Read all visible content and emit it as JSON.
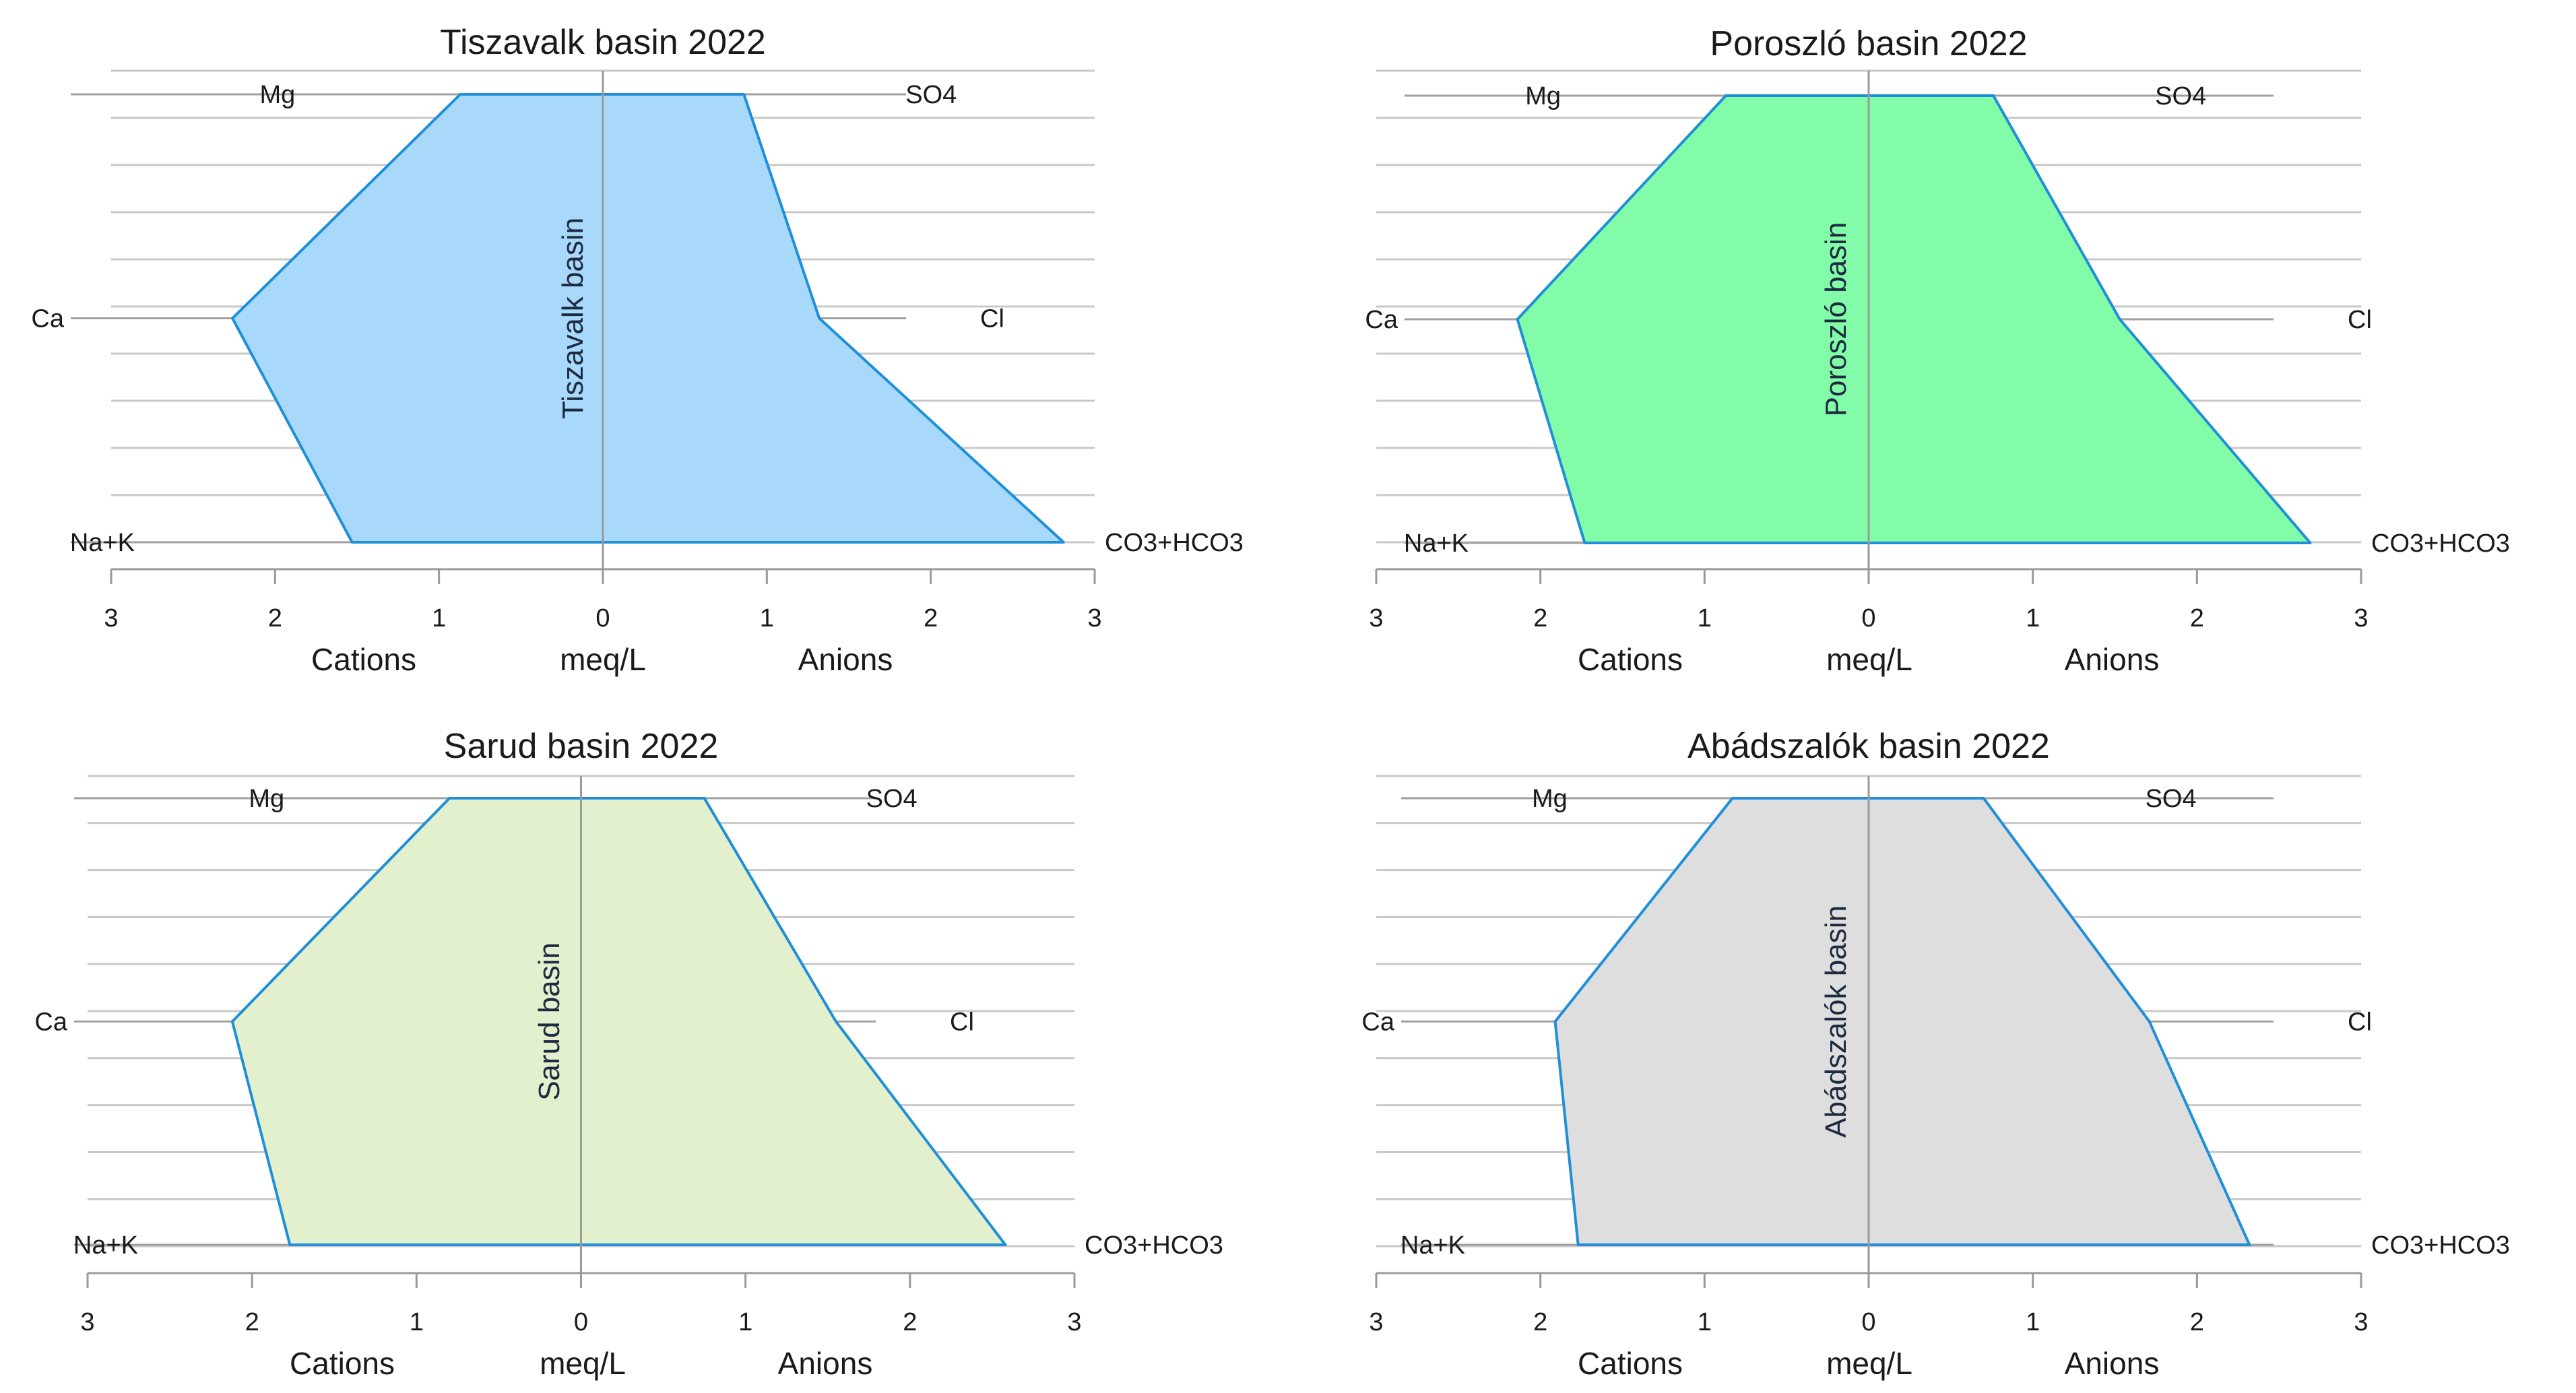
{
  "chart_data": [
    {
      "type": "stiff",
      "title": "Tiszavalk basin 2022",
      "center_label": "Tiszavalk basin",
      "fill": "#a8d8fa",
      "cations": [
        {
          "ion": "Mg",
          "value": 0.87
        },
        {
          "ion": "Ca",
          "value": 2.26
        },
        {
          "ion": "Na+K",
          "value": 1.53
        }
      ],
      "anions": [
        {
          "ion": "SO4",
          "value": 0.86
        },
        {
          "ion": "Cl",
          "value": 1.32
        },
        {
          "ion": "CO3+HCO3",
          "value": 2.81
        }
      ],
      "xlim": [
        -3,
        3
      ],
      "ticks": [
        "3",
        "2",
        "1",
        "0",
        "1",
        "2",
        "3"
      ],
      "xlabel_left": "Cations",
      "xlabel_center": "meq/L",
      "xlabel_right": "Anions"
    },
    {
      "type": "stiff",
      "title": "Poroszló basin 2022",
      "center_label": "Poroszló basin",
      "fill": "#82fca8",
      "cations": [
        {
          "ion": "Mg",
          "value": 0.87
        },
        {
          "ion": "Ca",
          "value": 2.14
        },
        {
          "ion": "Na+K",
          "value": 1.73
        }
      ],
      "anions": [
        {
          "ion": "SO4",
          "value": 0.76
        },
        {
          "ion": "Cl",
          "value": 1.53
        },
        {
          "ion": "CO3+HCO3",
          "value": 2.69
        }
      ],
      "xlim": [
        -3,
        3
      ],
      "ticks": [
        "3",
        "2",
        "1",
        "0",
        "1",
        "2",
        "3"
      ],
      "xlabel_left": "Cations",
      "xlabel_center": "meq/L",
      "xlabel_right": "Anions"
    },
    {
      "type": "stiff",
      "title": "Sarud basin 2022",
      "center_label": "Sarud basin",
      "fill": "#e3f0cd",
      "cations": [
        {
          "ion": "Mg",
          "value": 0.8
        },
        {
          "ion": "Ca",
          "value": 2.12
        },
        {
          "ion": "Na+K",
          "value": 1.77
        }
      ],
      "anions": [
        {
          "ion": "SO4",
          "value": 0.75
        },
        {
          "ion": "Cl",
          "value": 1.55
        },
        {
          "ion": "CO3+HCO3",
          "value": 2.58
        }
      ],
      "xlim": [
        -3,
        3
      ],
      "ticks": [
        "3",
        "2",
        "1",
        "0",
        "1",
        "2",
        "3"
      ],
      "xlabel_left": "Cations",
      "xlabel_center": "meq/L",
      "xlabel_right": "Anions"
    },
    {
      "type": "stiff",
      "title": "Abádszalók basin 2022",
      "center_label": "Abádszalók basin",
      "fill": "#dedede",
      "cations": [
        {
          "ion": "Mg",
          "value": 0.83
        },
        {
          "ion": "Ca",
          "value": 1.91
        },
        {
          "ion": "Na+K",
          "value": 1.77
        }
      ],
      "anions": [
        {
          "ion": "SO4",
          "value": 0.7
        },
        {
          "ion": "Cl",
          "value": 1.71
        },
        {
          "ion": "CO3+HCO3",
          "value": 2.32
        }
      ],
      "xlim": [
        -3,
        3
      ],
      "ticks": [
        "3",
        "2",
        "1",
        "0",
        "1",
        "2",
        "3"
      ],
      "xlabel_left": "Cations",
      "xlabel_center": "meq/L",
      "xlabel_right": "Anions"
    }
  ],
  "colors": {
    "outline": "#1e8fd8",
    "gridline": "#c8c8c8",
    "leader": "#a0a0a0",
    "axis": "#9a9a9a"
  }
}
